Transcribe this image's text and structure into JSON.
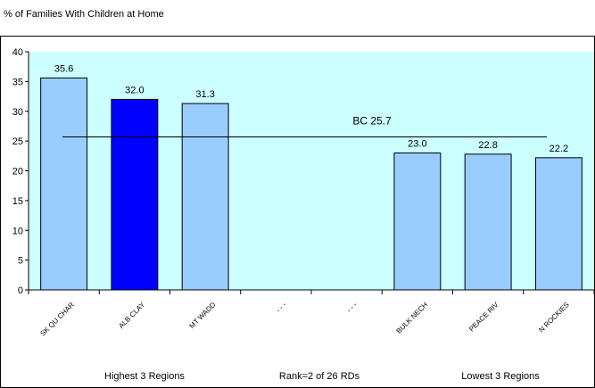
{
  "chart_data": {
    "type": "bar",
    "title": "% of Families With Children at Home",
    "categories": [
      "SK QU CHAR",
      "ALB CLAY",
      "MT WADD",
      "- - -",
      "- - -",
      "BULK NECH",
      "PEACE RIV",
      "N ROCKIES"
    ],
    "values": [
      35.6,
      32.0,
      31.3,
      null,
      null,
      23.0,
      22.8,
      22.2
    ],
    "value_labels": [
      "35.6",
      "32.0",
      "31.3",
      "",
      "",
      "23.0",
      "22.8",
      "22.2"
    ],
    "highlight_index": 1,
    "ylim": [
      0,
      40
    ],
    "yticks": [
      0,
      5,
      10,
      15,
      20,
      25,
      30,
      35,
      40
    ],
    "reference_line": {
      "value": 25.7,
      "label": "BC 25.7"
    },
    "footer_labels": [
      "Highest 3 Regions",
      "Rank=2 of 26 RDs",
      "Lowest 3 Regions"
    ],
    "colors": {
      "bar": "#99ccff",
      "highlight": "#0000ff",
      "plot_background": "#ccffff",
      "axis": "#000000"
    }
  }
}
